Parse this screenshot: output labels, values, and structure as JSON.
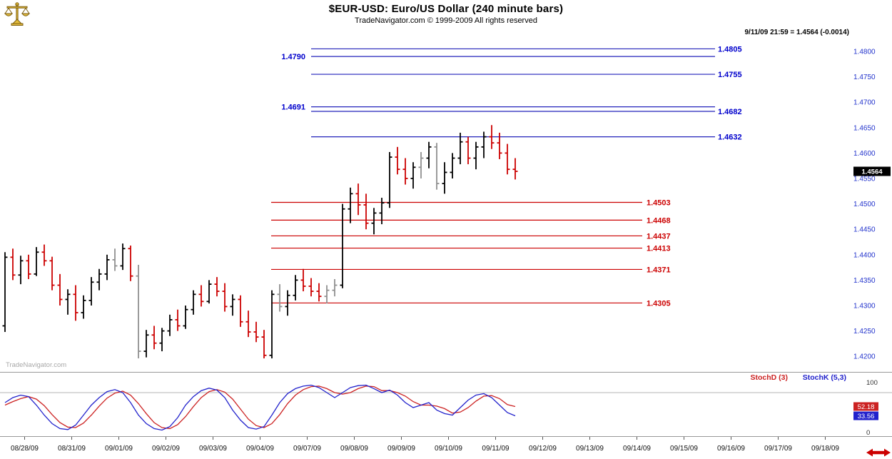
{
  "header": {
    "title": "$EUR-USD:  Euro/US Dollar  (240 minute bars)",
    "subtitle": "TradeNavigator.com © 1999-2009 All rights reserved",
    "quote": "9/11/09 21:59 = 1.4564 (-0.0014)"
  },
  "watermark": "TradeNavigator.com",
  "colors": {
    "up_bar": "#000000",
    "down_bar": "#cc0000",
    "neutral_bar": "#909090",
    "resistance": "#2222bb",
    "resistance_label": "#0000cc",
    "support": "#cc0000",
    "support_label": "#cc0000",
    "axis_label": "#2233cc",
    "stoch_d": "#cc2222",
    "stoch_k": "#2222cc",
    "badge_bg": "#000000",
    "badge_fg": "#ffffff"
  },
  "chart_data": {
    "type": "ohlc-bar",
    "title": "$EUR-USD Euro/US Dollar (240 minute bars)",
    "price_axis": {
      "max": 1.48,
      "min": 1.42,
      "step": 0.005
    },
    "last_price": {
      "value": 1.4564,
      "label": "1.4564"
    },
    "resistance_lines": [
      {
        "price": 1.4805,
        "label": "1.4805",
        "side": "right"
      },
      {
        "price": 1.479,
        "label": "1.4790",
        "side": "left"
      },
      {
        "price": 1.4755,
        "label": "1.4755",
        "side": "right"
      },
      {
        "price": 1.4691,
        "label": "1.4691",
        "side": "left"
      },
      {
        "price": 1.4682,
        "label": "1.4682",
        "side": "right"
      },
      {
        "price": 1.4632,
        "label": "1.4632",
        "side": "right"
      }
    ],
    "support_lines": [
      {
        "price": 1.4503,
        "label": "1.4503"
      },
      {
        "price": 1.4468,
        "label": "1.4468"
      },
      {
        "price": 1.4437,
        "label": "1.4437"
      },
      {
        "price": 1.4413,
        "label": "1.4413"
      },
      {
        "price": 1.4371,
        "label": "1.4371"
      },
      {
        "price": 1.4305,
        "label": "1.4305"
      }
    ],
    "dates": [
      "08/28/09",
      "08/31/09",
      "09/01/09",
      "09/02/09",
      "09/03/09",
      "09/04/09",
      "09/07/09",
      "09/08/09",
      "09/09/09",
      "09/10/09",
      "09/11/09",
      "09/12/09",
      "09/13/09",
      "09/14/09",
      "09/15/09",
      "09/16/09",
      "09/17/09",
      "09/18/09"
    ],
    "ohlc": [
      [
        1.426,
        1.4405,
        1.4248,
        1.4395,
        "b"
      ],
      [
        1.4395,
        1.4412,
        1.435,
        1.436,
        "r"
      ],
      [
        1.436,
        1.4398,
        1.4342,
        1.4388,
        "b"
      ],
      [
        1.4388,
        1.44,
        1.4352,
        1.4362,
        "r"
      ],
      [
        1.4362,
        1.4415,
        1.4358,
        1.4405,
        "b"
      ],
      [
        1.4405,
        1.442,
        1.4378,
        1.4388,
        "r"
      ],
      [
        1.4388,
        1.4396,
        1.433,
        1.434,
        "r"
      ],
      [
        1.434,
        1.4362,
        1.43,
        1.4312,
        "r"
      ],
      [
        1.4312,
        1.4332,
        1.4282,
        1.4322,
        "b"
      ],
      [
        1.4322,
        1.434,
        1.427,
        1.4286,
        "r"
      ],
      [
        1.4286,
        1.432,
        1.4274,
        1.431,
        "b"
      ],
      [
        1.431,
        1.4356,
        1.43,
        1.4346,
        "b"
      ],
      [
        1.4346,
        1.4372,
        1.433,
        1.4362,
        "b"
      ],
      [
        1.4362,
        1.44,
        1.435,
        1.439,
        "b"
      ],
      [
        1.439,
        1.4412,
        1.4368,
        1.4378,
        "g"
      ],
      [
        1.4378,
        1.4422,
        1.437,
        1.4412,
        "b"
      ],
      [
        1.4412,
        1.4418,
        1.4348,
        1.4358,
        "r"
      ],
      [
        1.4358,
        1.438,
        1.4196,
        1.421,
        "g"
      ],
      [
        1.421,
        1.4252,
        1.4198,
        1.4242,
        "b"
      ],
      [
        1.4242,
        1.426,
        1.4214,
        1.4226,
        "r"
      ],
      [
        1.4226,
        1.4256,
        1.421,
        1.425,
        "b"
      ],
      [
        1.425,
        1.4282,
        1.424,
        1.4272,
        "b"
      ],
      [
        1.4272,
        1.4292,
        1.425,
        1.426,
        "r"
      ],
      [
        1.426,
        1.43,
        1.4254,
        1.4292,
        "b"
      ],
      [
        1.4292,
        1.433,
        1.4282,
        1.4322,
        "b"
      ],
      [
        1.4322,
        1.434,
        1.4298,
        1.4308,
        "r"
      ],
      [
        1.4308,
        1.435,
        1.4304,
        1.4342,
        "b"
      ],
      [
        1.4342,
        1.4356,
        1.4318,
        1.4328,
        "r"
      ],
      [
        1.4328,
        1.4344,
        1.4288,
        1.4298,
        "r"
      ],
      [
        1.4298,
        1.4322,
        1.428,
        1.4312,
        "b"
      ],
      [
        1.4312,
        1.432,
        1.4258,
        1.4268,
        "r"
      ],
      [
        1.4268,
        1.429,
        1.4238,
        1.4248,
        "r"
      ],
      [
        1.4248,
        1.4268,
        1.4228,
        1.4238,
        "r"
      ],
      [
        1.4238,
        1.4252,
        1.4196,
        1.4202,
        "r"
      ],
      [
        1.4202,
        1.433,
        1.4196,
        1.4322,
        "b"
      ],
      [
        1.4322,
        1.4342,
        1.4288,
        1.4298,
        "g"
      ],
      [
        1.4298,
        1.433,
        1.428,
        1.432,
        "b"
      ],
      [
        1.432,
        1.436,
        1.431,
        1.435,
        "b"
      ],
      [
        1.435,
        1.4372,
        1.4328,
        1.4338,
        "r"
      ],
      [
        1.4338,
        1.4354,
        1.4318,
        1.4328,
        "r"
      ],
      [
        1.4328,
        1.4344,
        1.4308,
        1.4318,
        "r"
      ],
      [
        1.4318,
        1.434,
        1.4304,
        1.433,
        "g"
      ],
      [
        1.433,
        1.4352,
        1.4318,
        1.434,
        "g"
      ],
      [
        1.434,
        1.45,
        1.4334,
        1.449,
        "b"
      ],
      [
        1.449,
        1.4532,
        1.4462,
        1.452,
        "b"
      ],
      [
        1.452,
        1.454,
        1.4478,
        1.4498,
        "r"
      ],
      [
        1.4498,
        1.452,
        1.445,
        1.4462,
        "r"
      ],
      [
        1.4462,
        1.4492,
        1.444,
        1.4482,
        "b"
      ],
      [
        1.4482,
        1.4512,
        1.446,
        1.4502,
        "b"
      ],
      [
        1.4502,
        1.4602,
        1.4492,
        1.4592,
        "b"
      ],
      [
        1.4592,
        1.4612,
        1.4558,
        1.4568,
        "r"
      ],
      [
        1.4568,
        1.459,
        1.4538,
        1.455,
        "r"
      ],
      [
        1.455,
        1.4582,
        1.453,
        1.4572,
        "b"
      ],
      [
        1.4572,
        1.4602,
        1.455,
        1.459,
        "g"
      ],
      [
        1.459,
        1.4622,
        1.457,
        1.4612,
        "b"
      ],
      [
        1.4612,
        1.462,
        1.4528,
        1.454,
        "g"
      ],
      [
        1.454,
        1.4582,
        1.452,
        1.4562,
        "b"
      ],
      [
        1.4562,
        1.46,
        1.455,
        1.459,
        "b"
      ],
      [
        1.459,
        1.464,
        1.4578,
        1.4622,
        "b"
      ],
      [
        1.4622,
        1.4632,
        1.4578,
        1.459,
        "r"
      ],
      [
        1.459,
        1.4622,
        1.4568,
        1.4612,
        "b"
      ],
      [
        1.4612,
        1.4642,
        1.459,
        1.4632,
        "b"
      ],
      [
        1.4632,
        1.4655,
        1.4608,
        1.462,
        "r"
      ],
      [
        1.462,
        1.464,
        1.4588,
        1.46,
        "r"
      ],
      [
        1.46,
        1.4618,
        1.4558,
        1.4568,
        "r"
      ],
      [
        1.4568,
        1.459,
        1.4548,
        1.4564,
        "r"
      ]
    ],
    "stoch": {
      "d_label": "StochD (3)",
      "k_label": "StochK (5,3)",
      "d_value": "52.18",
      "k_value": "33.56",
      "axis_max": "100",
      "axis_min": "0",
      "grid_level": 80,
      "k": [
        60,
        70,
        75,
        72,
        55,
        35,
        18,
        8,
        6,
        15,
        35,
        55,
        70,
        82,
        86,
        80,
        60,
        35,
        18,
        8,
        5,
        12,
        30,
        55,
        72,
        84,
        89,
        85,
        70,
        45,
        25,
        10,
        7,
        12,
        35,
        60,
        78,
        88,
        93,
        95,
        90,
        80,
        70,
        80,
        90,
        94,
        95,
        88,
        80,
        85,
        75,
        60,
        50,
        55,
        60,
        45,
        38,
        35,
        50,
        65,
        75,
        78,
        70,
        55,
        40,
        33.56
      ],
      "d": [
        55,
        62,
        68,
        72,
        67,
        54,
        36,
        20,
        11,
        10,
        19,
        35,
        53,
        69,
        79,
        83,
        75,
        58,
        38,
        20,
        10,
        8,
        16,
        32,
        52,
        70,
        82,
        86,
        81,
        67,
        47,
        27,
        14,
        10,
        18,
        36,
        58,
        75,
        86,
        92,
        93,
        88,
        80,
        77,
        80,
        88,
        93,
        92,
        84,
        84,
        80,
        73,
        62,
        55,
        55,
        53,
        48,
        39,
        41,
        50,
        63,
        73,
        74,
        68,
        56,
        52.18
      ]
    }
  }
}
